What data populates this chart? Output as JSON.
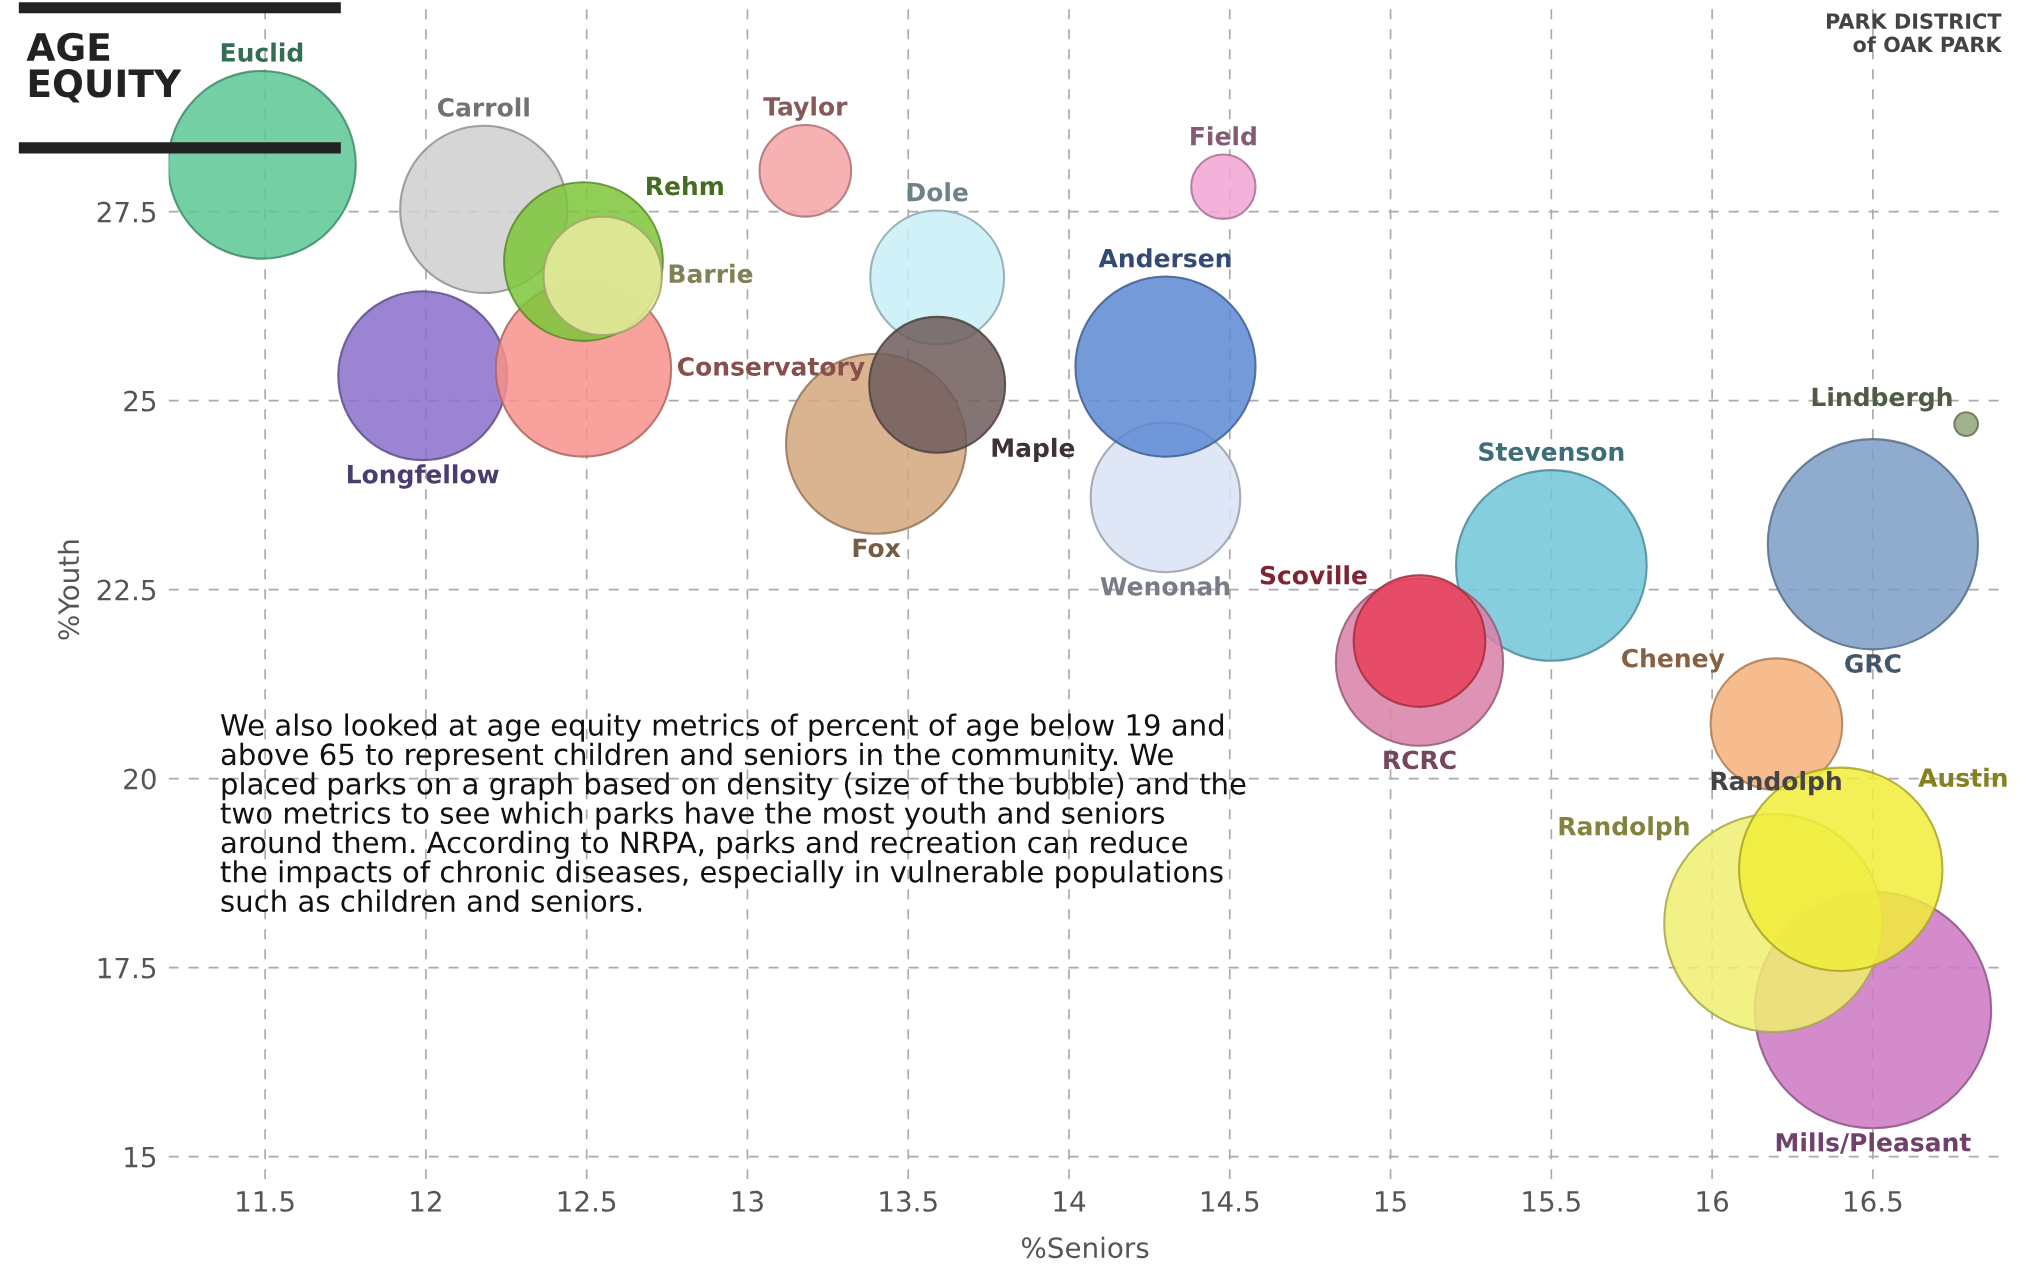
{
  "chart_data": {
    "type": "bubble",
    "title": "AGE\nEQUITY",
    "xlabel": "%Seniors",
    "ylabel": "%Youth",
    "xlim": [
      11.2,
      16.9
    ],
    "ylim": [
      14.7,
      30.3
    ],
    "xticks": [
      11.5,
      12,
      12.5,
      13,
      13.5,
      14,
      14.5,
      15,
      15.5,
      16,
      16.5
    ],
    "yticks": [
      15,
      17.5,
      20,
      22.5,
      25,
      27.5
    ],
    "grid": true,
    "legend": false,
    "marker": "circle",
    "series": [
      {
        "name": "Euclid",
        "color": "#5cc795",
        "x": [
          11.49
        ],
        "values": [
          28.12
        ],
        "sizes": [
          0.63
        ]
      },
      {
        "name": "Carroll",
        "color": "#cfcfcf",
        "x": [
          12.18
        ],
        "values": [
          27.53
        ],
        "sizes": [
          0.5
        ]
      },
      {
        "name": "Longfellow",
        "color": "#8a6fc9",
        "x": [
          11.99
        ],
        "values": [
          25.33
        ],
        "sizes": [
          0.51
        ]
      },
      {
        "name": "Conservatory",
        "color": "#f7918c",
        "x": [
          12.49
        ],
        "values": [
          25.42
        ],
        "sizes": [
          0.55
        ]
      },
      {
        "name": "Rehm",
        "color": "#7cc63a",
        "x": [
          12.49
        ],
        "values": [
          26.84
        ],
        "sizes": [
          0.45
        ]
      },
      {
        "name": "Barrie",
        "color": "#eaeb9f",
        "x": [
          12.55
        ],
        "values": [
          26.65
        ],
        "sizes": [
          0.25
        ]
      },
      {
        "name": "Taylor",
        "color": "#f4a3a6",
        "x": [
          13.18
        ],
        "values": [
          28.04
        ],
        "sizes": [
          0.15
        ]
      },
      {
        "name": "Field",
        "color": "#f2a3d3",
        "x": [
          14.48
        ],
        "values": [
          27.83
        ],
        "sizes": [
          0.074
        ]
      },
      {
        "name": "Dole",
        "color": "#c8eef7",
        "x": [
          13.59
        ],
        "values": [
          26.63
        ],
        "sizes": [
          0.32
        ]
      },
      {
        "name": "Fox",
        "color": "#d4a77e",
        "x": [
          13.4
        ],
        "values": [
          24.43
        ],
        "sizes": [
          0.58
        ]
      },
      {
        "name": "Maple",
        "color": "#6f5c5c",
        "x": [
          13.59
        ],
        "values": [
          25.21
        ],
        "sizes": [
          0.33
        ]
      },
      {
        "name": "Wenonah",
        "color": "#d9e3f4",
        "x": [
          14.3
        ],
        "values": [
          23.72
        ],
        "sizes": [
          0.4
        ]
      },
      {
        "name": "Andersen",
        "color": "#5d88d3",
        "x": [
          14.3
        ],
        "values": [
          25.45
        ],
        "sizes": [
          0.58
        ]
      },
      {
        "name": "Lindbergh",
        "color": "#8fa57a",
        "x": [
          16.79
        ],
        "values": [
          24.69
        ],
        "sizes": [
          0.01
        ]
      },
      {
        "name": "Stevenson",
        "color": "#6ec6d8",
        "x": [
          15.5
        ],
        "values": [
          22.82
        ],
        "sizes": [
          0.65
        ]
      },
      {
        "name": "GRC",
        "color": "#7b9cc4",
        "x": [
          16.5
        ],
        "values": [
          23.1
        ],
        "sizes": [
          0.79
        ]
      },
      {
        "name": "RCRC",
        "color": "#d880a8",
        "x": [
          15.09
        ],
        "values": [
          21.54
        ],
        "sizes": [
          0.5
        ]
      },
      {
        "name": "Scoville",
        "color": "#e8405a",
        "x": [
          15.09
        ],
        "values": [
          21.82
        ],
        "sizes": [
          0.31
        ]
      },
      {
        "name": "Cheney",
        "color": "#f6b07a",
        "x": [
          16.2
        ],
        "values": [
          20.72
        ],
        "sizes": [
          0.31
        ]
      },
      {
        "name": "Mills/Pleasant",
        "color": "#cc77c2",
        "x": [
          16.5
        ],
        "values": [
          16.94
        ],
        "sizes": [
          1
        ]
      },
      {
        "name": "Randolph",
        "color": "#eeee70",
        "x": [
          16.19
        ],
        "values": [
          18.09
        ],
        "sizes": [
          0.85
        ]
      },
      {
        "name": "Austin",
        "color": "#f0ec3a",
        "x": [
          16.4
        ],
        "values": [
          18.8
        ],
        "sizes": [
          0.74
        ]
      }
    ],
    "annotations": [
      "We also looked at age equity metrics of percent of age below 19 and\nabove 65 to represent children and seniors in the community. We\nplaced parks on a graph based on density (size of the bubble) and the\ntwo metrics to see which parks have the most youth and seniors\naround them. According to NRPA, parks and recreation can reduce\nthe impacts of chronic diseases, especially in vulnerable populations\nsuch as children and seniors.",
      "Randolph",
      "PARK DISTRICT\nof OAK PARK"
    ]
  }
}
